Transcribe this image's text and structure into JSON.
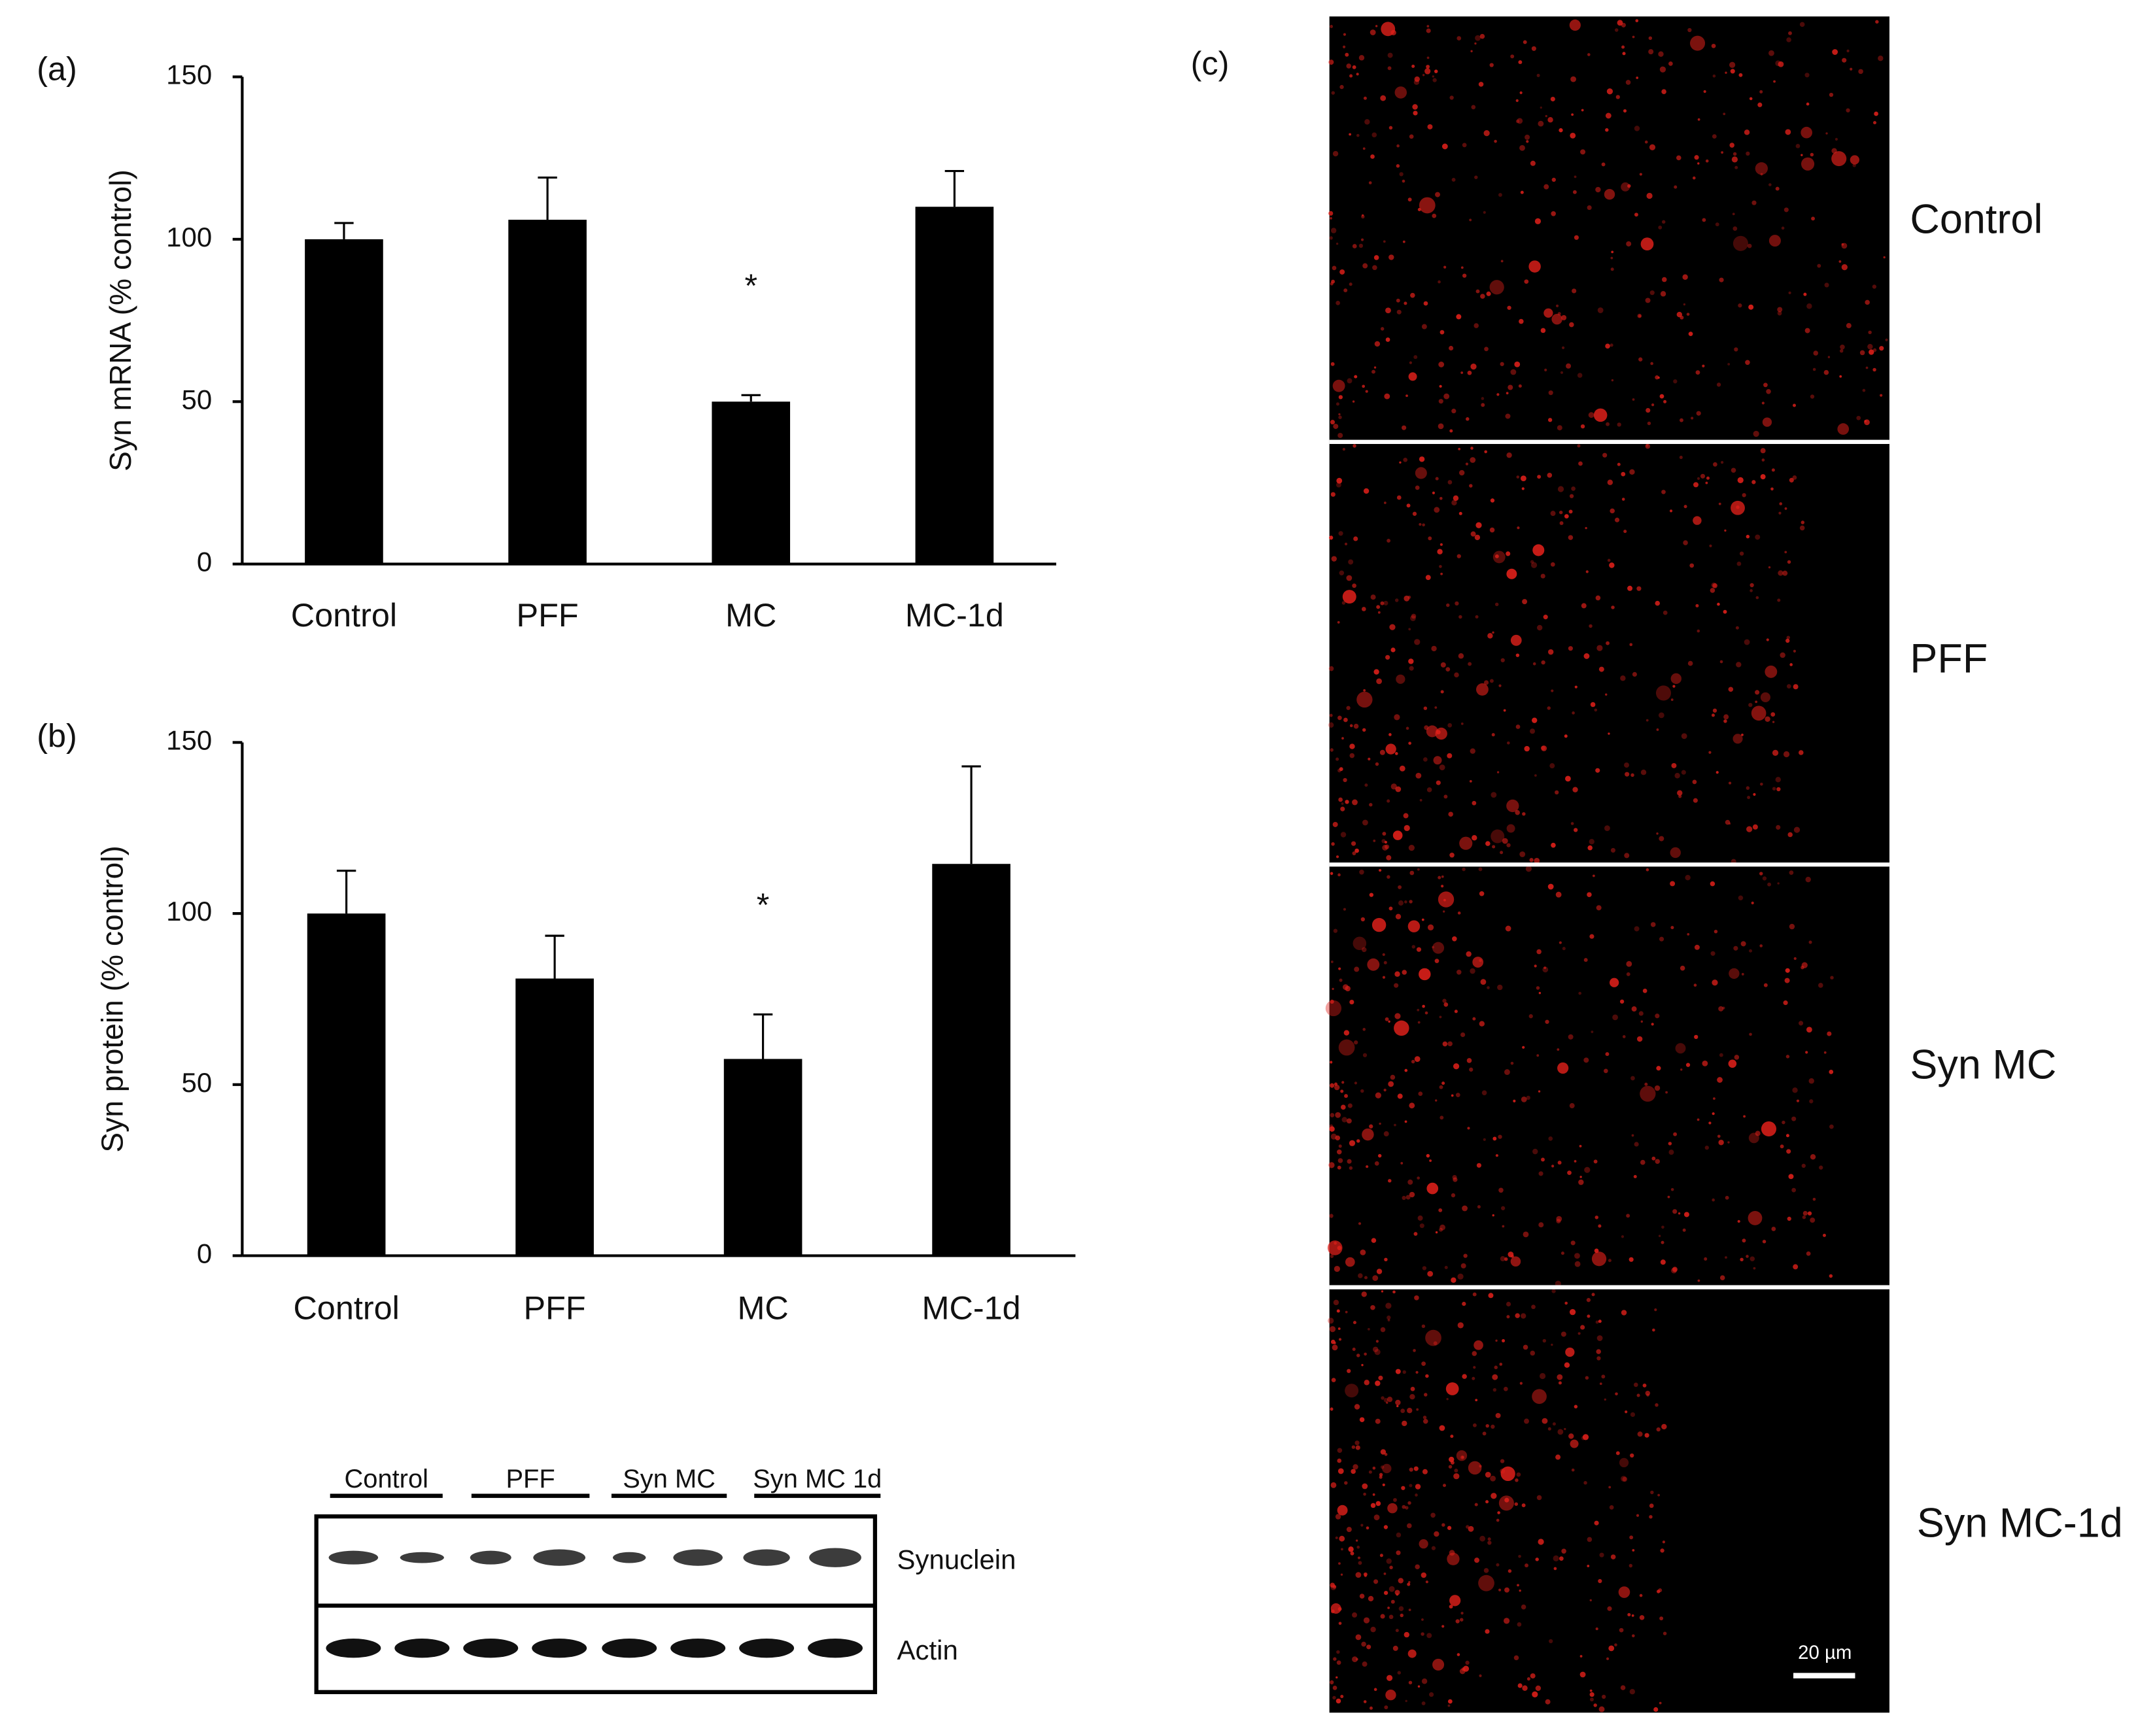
{
  "chart_data": [
    {
      "type": "bar",
      "panel_label": "(a)",
      "y_label": "Syn mRNA (% control)",
      "categories": [
        "Control",
        "PFF",
        "MC",
        "MC-1d"
      ],
      "values": [
        100,
        106,
        50,
        110
      ],
      "errors": [
        5,
        13,
        2,
        11
      ],
      "color": "#000000",
      "ylim": [
        0,
        150
      ],
      "yticks": [
        0,
        50,
        100,
        150
      ],
      "annotations": [
        {
          "text": "*",
          "x": "MC"
        }
      ]
    },
    {
      "type": "bar",
      "panel_label": "(b)",
      "y_label": "Syn protein (% control)",
      "categories": [
        "Control",
        "PFF",
        "MC",
        "MC-1d"
      ],
      "values": [
        100,
        81,
        57.5,
        114.5
      ],
      "errors": [
        12.5,
        12.5,
        13,
        28.5
      ],
      "color": "#000000",
      "ylim": [
        0,
        150
      ],
      "yticks": [
        0,
        50,
        100,
        150
      ],
      "annotations": [
        {
          "text": "*",
          "x": "MC"
        }
      ]
    }
  ],
  "blot": {
    "lanes": [
      "Control",
      "PFF",
      "Syn MC",
      "Syn MC 1d"
    ],
    "rows": [
      "Synuclein",
      "Actin"
    ]
  },
  "micrographs": {
    "panel_label": "(c)",
    "panels": [
      "Control",
      "PFF",
      "Syn MC",
      "Syn MC-1d"
    ],
    "scale_bar": "20 µm"
  }
}
